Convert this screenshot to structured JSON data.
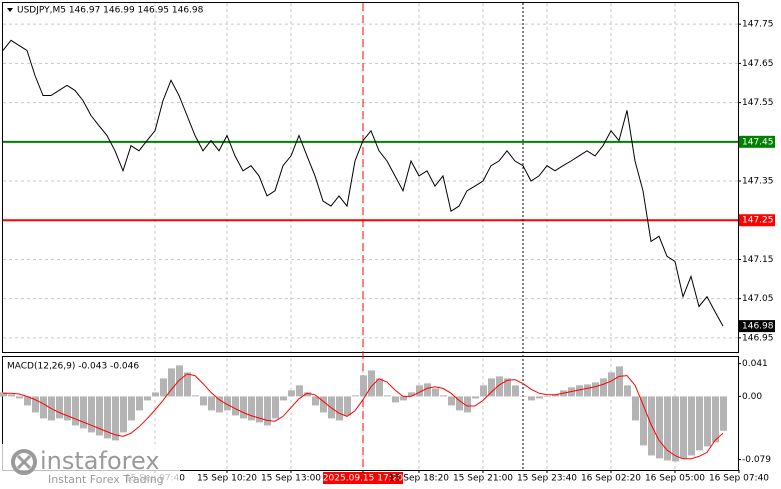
{
  "chart_data": [
    {
      "type": "line",
      "title": "USDJPY,M5  146.97 146.99 146.95 146.98",
      "color": "#000000",
      "categories": [
        null,
        null,
        null,
        null,
        null,
        null,
        null,
        null,
        null,
        null,
        null,
        null,
        null,
        null,
        null,
        null,
        null,
        null,
        null,
        "15 Sep 07:40",
        null,
        null,
        null,
        null,
        null,
        null,
        null,
        null,
        "15 Sep 10:20",
        null,
        null,
        null,
        null,
        null,
        null,
        null,
        "15 Sep 13:00",
        null,
        null,
        null,
        null,
        null,
        null,
        null,
        null,
        "2025.09.15 17:20",
        null,
        null,
        null,
        null,
        null,
        null,
        "15 Sep 18:20",
        null,
        null,
        null,
        null,
        null,
        null,
        null,
        "15 Sep 21:00",
        null,
        null,
        null,
        null,
        null,
        null,
        null,
        "15 Sep 23:40",
        null,
        null,
        null,
        null,
        null,
        null,
        null,
        "16 Sep 02:20",
        null,
        null,
        null,
        null,
        null,
        null,
        null,
        "16 Sep 05:00",
        null,
        null,
        null,
        null,
        null,
        null,
        null,
        "16 Sep 07:40"
      ],
      "values": [
        147.683,
        147.709,
        147.696,
        147.683,
        147.619,
        147.568,
        147.568,
        147.581,
        147.594,
        147.581,
        147.555,
        147.517,
        147.491,
        147.466,
        147.427,
        147.376,
        147.44,
        147.427,
        147.453,
        147.478,
        147.555,
        147.607,
        147.568,
        147.517,
        147.466,
        147.427,
        147.453,
        147.427,
        147.466,
        147.414,
        147.376,
        147.389,
        147.363,
        147.312,
        147.325,
        147.389,
        147.414,
        147.466,
        147.414,
        147.363,
        147.299,
        147.286,
        147.312,
        147.286,
        147.401,
        147.453,
        147.478,
        147.427,
        147.401,
        147.363,
        147.325,
        147.401,
        147.363,
        147.376,
        147.337,
        147.363,
        147.273,
        147.286,
        147.325,
        147.337,
        147.35,
        147.389,
        147.401,
        147.427,
        147.401,
        147.389,
        147.35,
        147.363,
        147.389,
        147.376,
        147.389,
        147.401,
        147.414,
        147.427,
        147.414,
        147.44,
        147.478,
        147.453,
        147.53,
        147.401,
        147.325,
        147.196,
        147.209,
        147.158,
        147.145,
        147.055,
        147.107,
        147.03,
        147.055,
        147.017,
        146.98,
        null,
        null
      ],
      "ylim": [
        146.914,
        147.804
      ],
      "yticks": [
        147.75,
        147.65,
        147.55,
        147.45,
        147.35,
        147.25,
        147.15,
        147.05,
        146.95
      ],
      "grid": true,
      "hlines": [
        {
          "value": 147.45,
          "color": "#008000"
        },
        {
          "value": 147.25,
          "color": "#ff0000"
        }
      ],
      "vlines": [
        {
          "index": 45,
          "color": "#ff0000",
          "style": "dashed"
        },
        {
          "index": 65,
          "color": "#000000",
          "style": "dotted"
        }
      ]
    },
    {
      "type": "bar",
      "title": "MACD(12,26,9) -0.043 -0.046",
      "color": "#b4b4b4",
      "values": [
        0.005,
        0.0025,
        -0.0025,
        -0.0113,
        -0.02,
        -0.0275,
        -0.03,
        -0.0275,
        -0.03,
        -0.0363,
        -0.04,
        -0.045,
        -0.0488,
        -0.0525,
        -0.055,
        -0.045,
        -0.03,
        -0.0175,
        -0.005,
        0.005,
        0.0225,
        0.035,
        0.0388,
        0.03,
        0.0013,
        -0.0113,
        -0.0175,
        -0.02,
        -0.0175,
        -0.0238,
        -0.0275,
        -0.03,
        -0.0325,
        -0.0363,
        -0.0275,
        -0.005,
        0.0075,
        0.0138,
        0.005,
        -0.0113,
        -0.02,
        -0.0275,
        -0.03,
        -0.0238,
        0.0013,
        0.0263,
        0.0325,
        0.0225,
        0.0013,
        -0.0075,
        -0.005,
        0.005,
        0.0138,
        0.0163,
        0.01,
        0.0013,
        -0.0113,
        -0.0175,
        -0.02,
        -0.0025,
        0.0138,
        0.0225,
        0.025,
        0.0225,
        0.0138,
        0,
        -0.005,
        -0.0025,
        0,
        0.0025,
        0.0075,
        0.0113,
        0.0138,
        0.015,
        0.0175,
        0.0225,
        0.03,
        0.0375,
        0.0138,
        -0.03,
        -0.0613,
        -0.0738,
        -0.0775,
        -0.08,
        -0.0813,
        -0.0775,
        -0.0738,
        -0.0675,
        -0.0625,
        -0.0575,
        -0.043
      ],
      "signal": {
        "color": "#ff0000",
        "values": [
          0.004,
          0.004,
          0.003,
          0,
          -0.004,
          -0.009,
          -0.015,
          -0.02,
          -0.024,
          -0.028,
          -0.032,
          -0.036,
          -0.04,
          -0.044,
          -0.048,
          -0.05,
          -0.046,
          -0.038,
          -0.028,
          -0.017,
          -0.005,
          0.008,
          0.02,
          0.028,
          0.026,
          0.016,
          0.005,
          -0.004,
          -0.01,
          -0.015,
          -0.02,
          -0.024,
          -0.027,
          -0.03,
          -0.031,
          -0.025,
          -0.014,
          -0.003,
          0.004,
          0.002,
          -0.006,
          -0.014,
          -0.021,
          -0.025,
          -0.018,
          -0.004,
          0.012,
          0.022,
          0.018,
          0.008,
          0,
          0,
          0.005,
          0.01,
          0.012,
          0.01,
          0.004,
          -0.005,
          -0.012,
          -0.012,
          -0.005,
          0.005,
          0.014,
          0.02,
          0.021,
          0.016,
          0.009,
          0.004,
          0.002,
          0.002,
          0.004,
          0.006,
          0.008,
          0.01,
          0.012,
          0.015,
          0.019,
          0.025,
          0.026,
          0.014,
          -0.01,
          -0.035,
          -0.055,
          -0.067,
          -0.074,
          -0.078,
          -0.078,
          -0.075,
          -0.07,
          -0.055,
          -0.046
        ]
      },
      "ylim": [
        -0.092,
        0.048
      ],
      "yticks": [
        0.041,
        {
          "value": 0,
          "label": "0.00"
        },
        -0.079
      ]
    }
  ],
  "watermark": {
    "brand": "instaforex",
    "tagline": "Instant Forex Trading"
  }
}
